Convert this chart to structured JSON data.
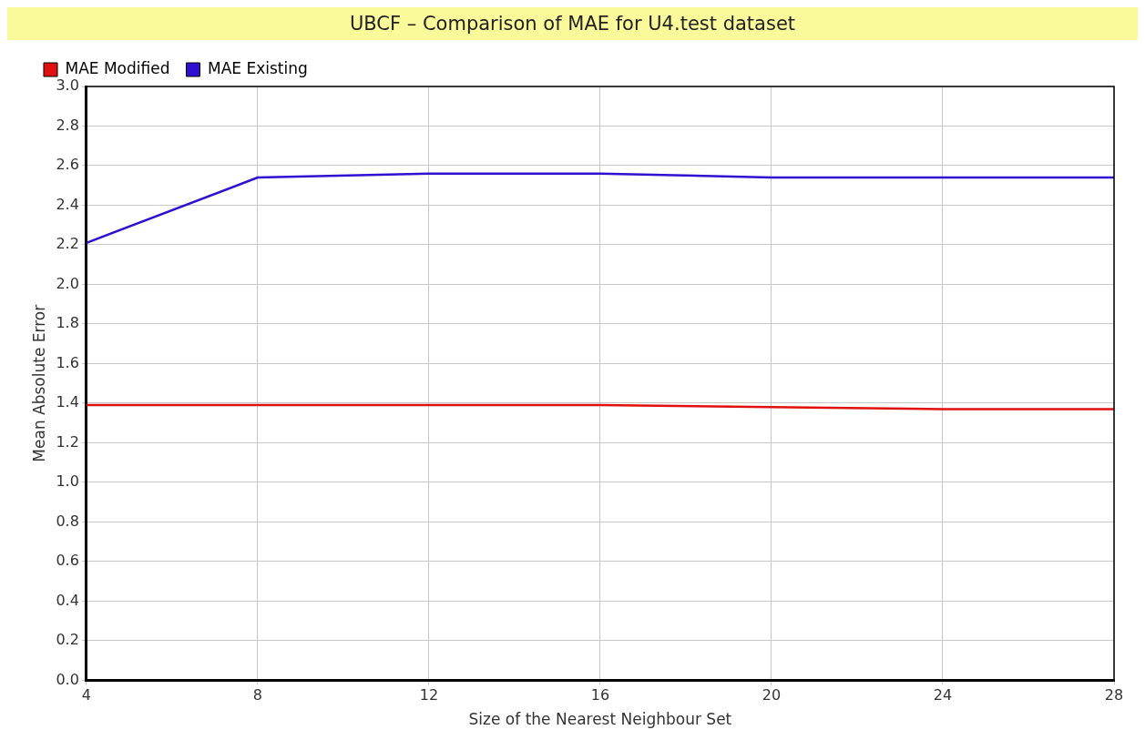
{
  "chart_data": {
    "type": "line",
    "title": "UBCF – Comparison of MAE for U4.test dataset",
    "xlabel": "Size of the Nearest Neighbour Set",
    "ylabel": "Mean Absolute Error",
    "x": [
      4,
      8,
      12,
      16,
      20,
      24,
      28
    ],
    "series": [
      {
        "name": "MAE Modified",
        "color": "#e01010",
        "values": [
          1.39,
          1.39,
          1.39,
          1.39,
          1.38,
          1.37,
          1.37
        ]
      },
      {
        "name": "MAE Existing",
        "color": "#3010d0",
        "values": [
          2.21,
          2.54,
          2.56,
          2.56,
          2.54,
          2.54,
          2.54
        ]
      }
    ],
    "xlim": [
      4,
      28
    ],
    "xticks": [
      4,
      8,
      12,
      16,
      20,
      24,
      28
    ],
    "ylim": [
      0,
      3
    ],
    "yticks": [
      {
        "value": 0,
        "label": "0.0"
      },
      {
        "value": 0.2,
        "label": "0.2"
      },
      {
        "value": 0.4,
        "label": "0.4"
      },
      {
        "value": 0.6,
        "label": "0.6"
      },
      {
        "value": 0.8,
        "label": "0.8"
      },
      {
        "value": 1,
        "label": "1.0"
      },
      {
        "value": 1.2,
        "label": "1.2"
      },
      {
        "value": 1.4,
        "label": "1.4"
      },
      {
        "value": 1.6,
        "label": "1.6"
      },
      {
        "value": 1.8,
        "label": "1.8"
      },
      {
        "value": 2,
        "label": "2.0"
      },
      {
        "value": 2.2,
        "label": "2.2"
      },
      {
        "value": 2.4,
        "label": "2.4"
      },
      {
        "value": 2.6,
        "label": "2.6"
      },
      {
        "value": 2.8,
        "label": "2.8"
      },
      {
        "value": 3,
        "label": "3.0"
      }
    ],
    "grid": true,
    "legend": "top left",
    "marker": "none",
    "line_style": "solid"
  }
}
